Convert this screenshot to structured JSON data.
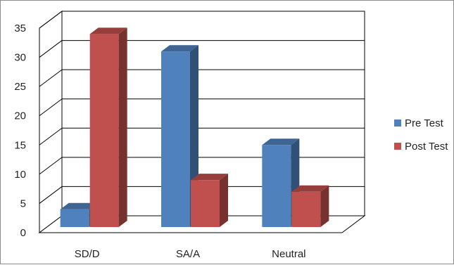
{
  "chart_data": {
    "type": "bar",
    "categories": [
      "SD/D",
      "SA/A",
      "Neutral"
    ],
    "series": [
      {
        "name": "Pre Test",
        "values": [
          4,
          31,
          15
        ],
        "color": "#4f81bd"
      },
      {
        "name": "Post Test",
        "values": [
          34,
          9,
          7
        ],
        "color": "#c0504d"
      }
    ],
    "title": "",
    "xlabel": "",
    "ylabel": "",
    "ylim": [
      0,
      35
    ],
    "yticks": [
      "0",
      "5",
      "10",
      "15",
      "20",
      "25",
      "30",
      "35"
    ],
    "grid": true,
    "legend": "right",
    "style": "3d-clustered-column"
  }
}
